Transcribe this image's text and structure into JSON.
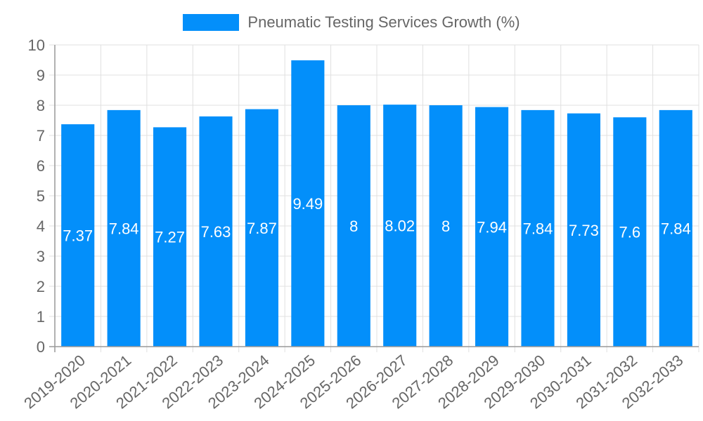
{
  "legend": {
    "label": "Pneumatic Testing Services Growth (%)",
    "color": "#038ffa"
  },
  "chart_data": {
    "type": "bar",
    "title": "",
    "xlabel": "",
    "ylabel": "",
    "ylim": [
      0,
      10
    ],
    "yticks": [
      0,
      1,
      2,
      3,
      4,
      5,
      6,
      7,
      8,
      9,
      10
    ],
    "grid": true,
    "legend_position": "top",
    "categories": [
      "2019-2020",
      "2020-2021",
      "2021-2022",
      "2022-2023",
      "2023-2024",
      "2024-2025",
      "2025-2026",
      "2026-2027",
      "2027-2028",
      "2028-2029",
      "2029-2030",
      "2030-2031",
      "2031-2032",
      "2032-2033"
    ],
    "series": [
      {
        "name": "Pneumatic Testing Services Growth (%)",
        "color": "#038ffa",
        "values": [
          7.37,
          7.84,
          7.27,
          7.63,
          7.87,
          9.49,
          8,
          8.02,
          8,
          7.94,
          7.84,
          7.73,
          7.6,
          7.84
        ]
      }
    ]
  }
}
